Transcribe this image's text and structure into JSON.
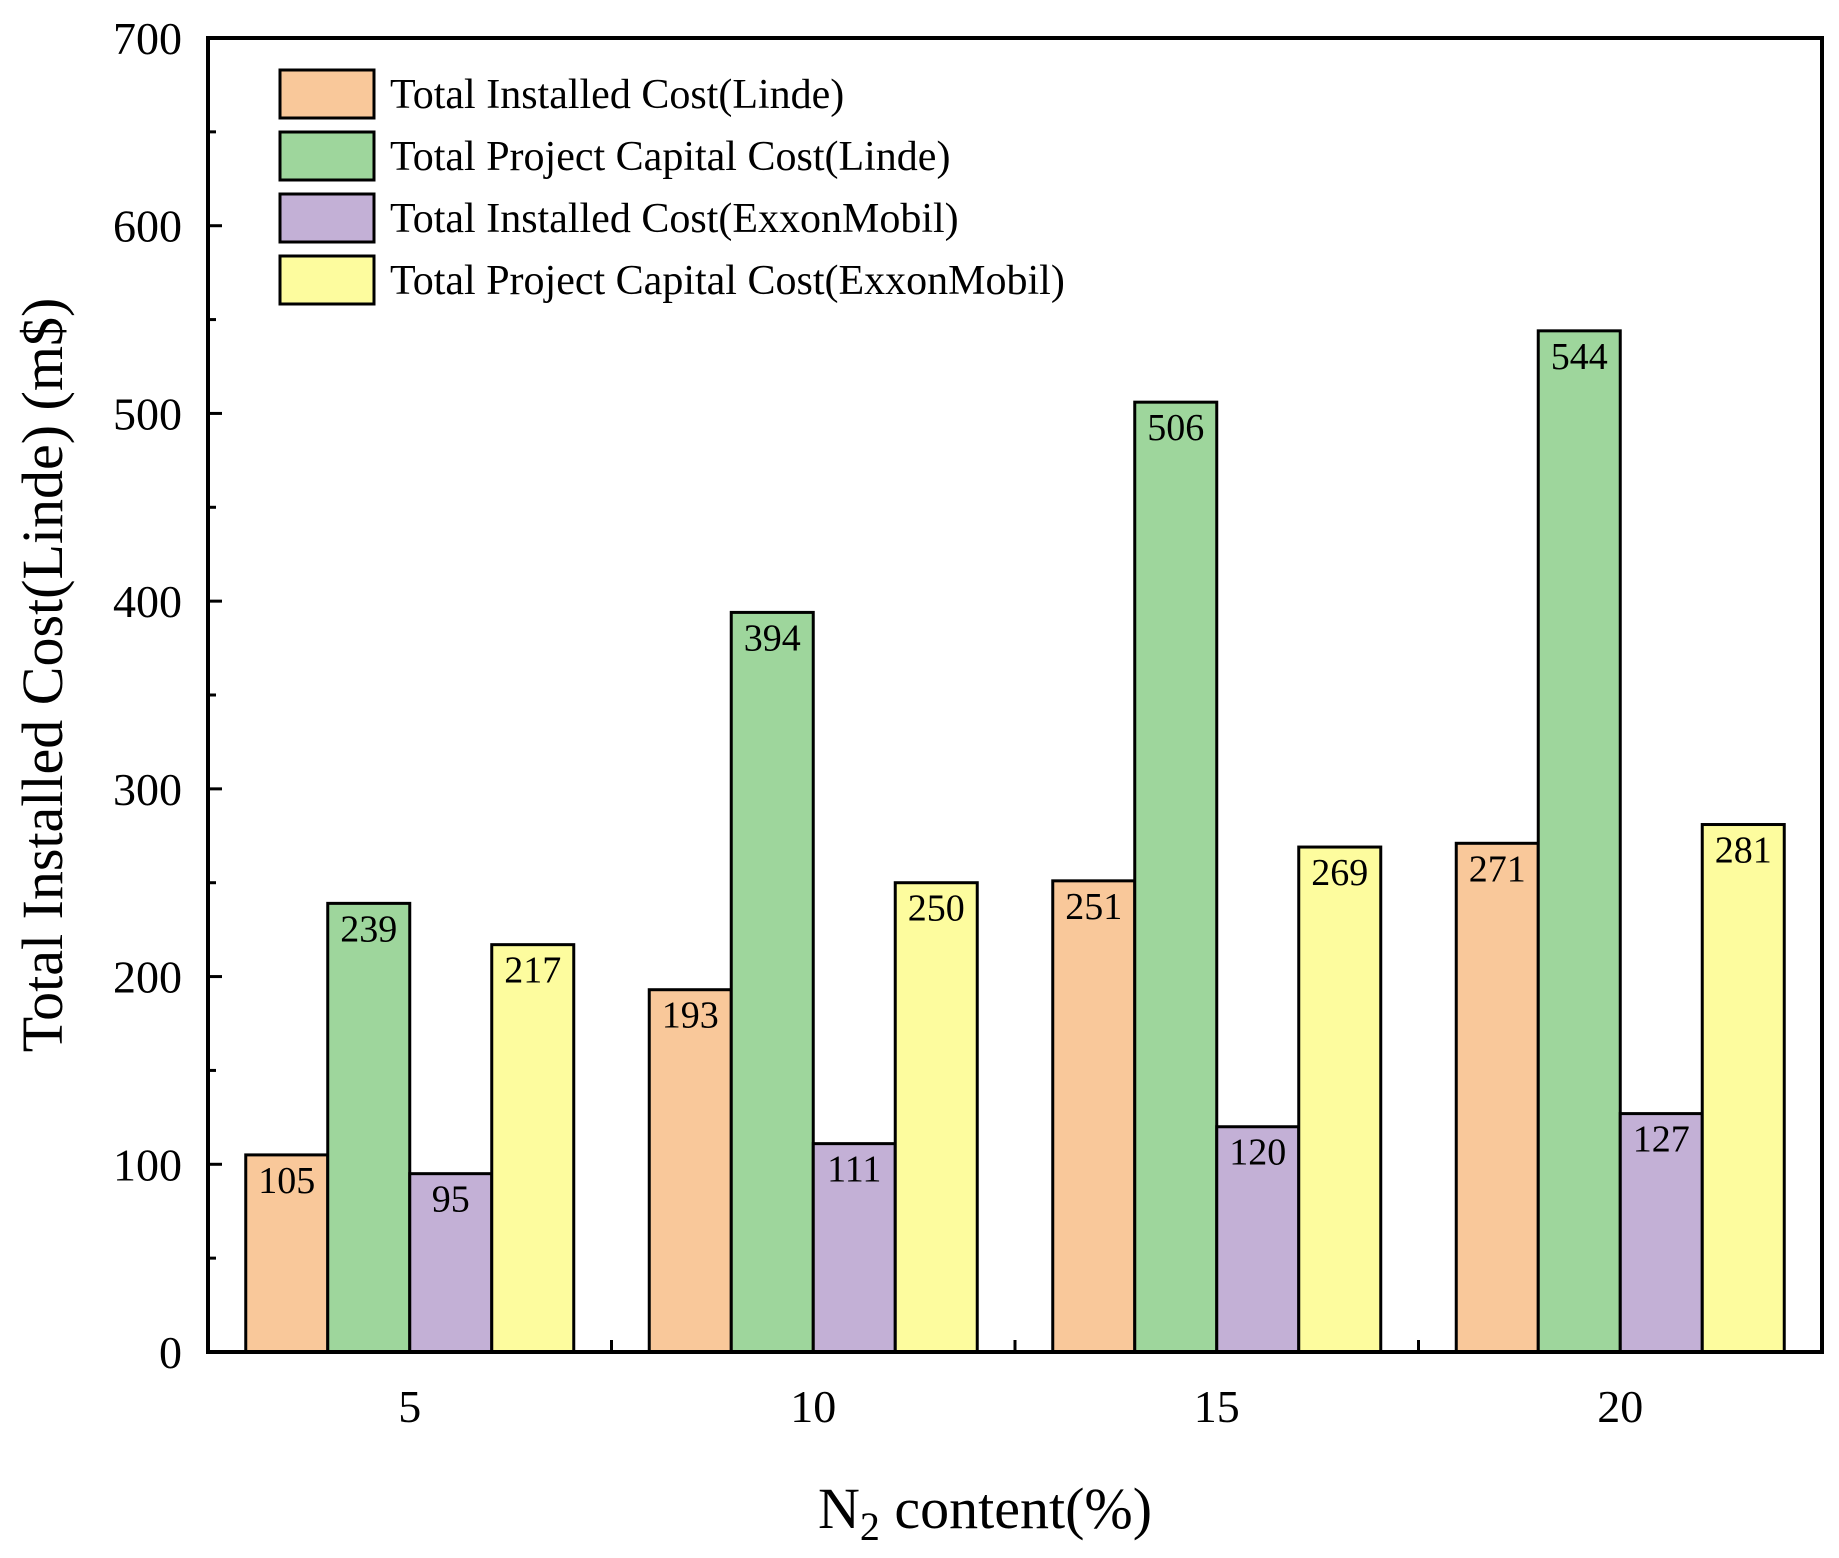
{
  "chart_data": {
    "type": "bar",
    "title": "",
    "xlabel_main": "N",
    "xlabel_sub": "2",
    "xlabel_rest": " content(%)",
    "ylabel": "Total Installed Cost(Linde) (m$)",
    "categories": [
      "5",
      "10",
      "15",
      "20"
    ],
    "ylim": [
      0,
      700
    ],
    "yticks": [
      0,
      100,
      200,
      300,
      400,
      500,
      600,
      700
    ],
    "ytick_labels": [
      "0",
      "100",
      "200",
      "300",
      "400",
      "500",
      "600",
      "700"
    ],
    "legend_position": "top-left",
    "grid": false,
    "series": [
      {
        "name": "Total Installed Cost(Linde)",
        "color": "#F9C89A",
        "values": [
          105,
          193,
          251,
          271
        ],
        "labels": [
          "105",
          "193",
          "251",
          "271"
        ]
      },
      {
        "name": "Total Project Capital Cost(Linde)",
        "color": "#9ED69C",
        "values": [
          239,
          394,
          506,
          544
        ],
        "labels": [
          "239",
          "394",
          "506",
          "544"
        ]
      },
      {
        "name": "Total Installed Cost(ExxonMobil)",
        "color": "#C3B0D6",
        "values": [
          95,
          111,
          120,
          127
        ],
        "labels": [
          "95",
          "111",
          "120",
          "127"
        ]
      },
      {
        "name": "Total Project Capital Cost(ExxonMobil)",
        "color": "#FDFC9E",
        "values": [
          217,
          250,
          269,
          281
        ],
        "labels": [
          "217",
          "250",
          "269",
          "281"
        ]
      }
    ]
  }
}
